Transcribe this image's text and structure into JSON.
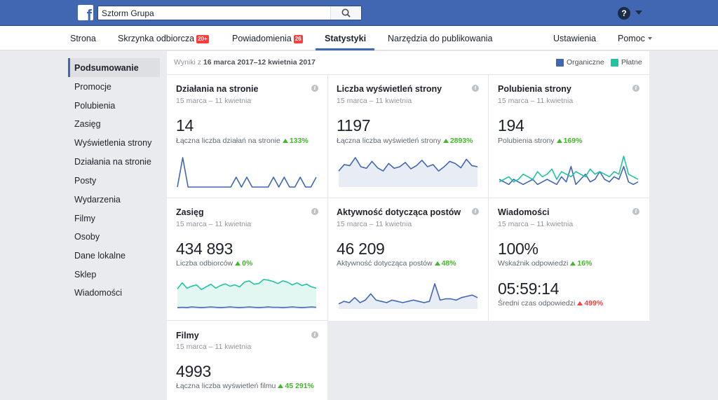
{
  "topbar": {
    "logo_letter": "f",
    "search_value": "Sztorm Grupa",
    "help_label": "?"
  },
  "nav": {
    "items": [
      {
        "label": "Strona"
      },
      {
        "label": "Skrzynka odbiorcza",
        "badge": "20+"
      },
      {
        "label": "Powiadomienia",
        "badge": "26"
      },
      {
        "label": "Statystyki",
        "active": true
      },
      {
        "label": "Narzędzia do publikowania"
      },
      {
        "label": "Ustawienia"
      },
      {
        "label": "Pomoc"
      }
    ]
  },
  "sidebar": {
    "items": [
      "Podsumowanie",
      "Promocje",
      "Polubienia",
      "Zasięg",
      "Wyświetlenia strony",
      "Działania na stronie",
      "Posty",
      "Wydarzenia",
      "Filmy",
      "Osoby",
      "Dane lokalne",
      "Sklep",
      "Wiadomości"
    ]
  },
  "summary": {
    "results_prefix": "Wyniki z ",
    "results_range": "16 marca 2017–12 kwietnia 2017",
    "legend": [
      {
        "label": "Organiczne",
        "color": "#4267b2"
      },
      {
        "label": "Płatne",
        "color": "#20c5a0"
      }
    ]
  },
  "cards": {
    "actions": {
      "title": "Działania na stronie",
      "date": "15 marca – 11 kwietnia",
      "value": "14",
      "sub": "Łączna liczba działań na stronie",
      "change": "133%",
      "chart_data": {
        "type": "line",
        "series": [
          {
            "color": "#4267b2",
            "values": [
              0,
              3,
              0,
              0,
              0,
              0,
              0,
              0,
              0,
              0,
              0,
              1,
              0,
              1,
              0,
              0,
              0,
              0,
              1,
              0,
              1,
              0,
              0,
              1,
              0,
              0,
              1
            ]
          }
        ]
      }
    },
    "views": {
      "title": "Liczba wyświetleń strony",
      "date": "15 marca – 11 kwietnia",
      "value": "1197",
      "sub": "Łączna liczba wyświetleń strony",
      "change": "2893%",
      "chart_data": {
        "type": "area",
        "series": [
          {
            "color": "#4267b2",
            "values": [
              30,
              42,
              40,
              55,
              38,
              35,
              48,
              36,
              30,
              44,
              35,
              38,
              46,
              34,
              40,
              50,
              38,
              42,
              30,
              38,
              48,
              44,
              36,
              52,
              40,
              38
            ]
          }
        ]
      }
    },
    "likes": {
      "title": "Polubienia strony",
      "date": "15 marca – 11 kwietnia",
      "value": "194",
      "sub": "Polubienia strony",
      "change": "169%",
      "chart_data": {
        "type": "line",
        "series": [
          {
            "color": "#4267b2",
            "values": [
              3,
              2,
              1,
              3,
              2,
              1,
              2,
              3,
              1,
              2,
              3,
              2,
              1,
              4,
              2,
              8,
              1,
              3,
              5,
              2,
              3,
              6,
              3,
              2,
              4,
              3,
              8,
              2,
              1,
              2
            ]
          },
          {
            "color": "#20c5a0",
            "values": [
              2,
              3,
              4,
              2,
              3,
              5,
              4,
              3,
              6,
              4,
              5,
              7,
              3,
              6,
              5,
              4,
              6,
              5,
              4,
              7,
              5,
              6,
              5,
              4,
              6,
              5,
              12,
              5,
              4,
              3
            ]
          }
        ]
      }
    },
    "reach": {
      "title": "Zasięg",
      "date": "15 marca – 11 kwietnia",
      "value": "434 893",
      "sub": "Liczba odbiorców",
      "change": "0%",
      "chart_data": {
        "type": "area",
        "series": [
          {
            "color": "#20c5a0",
            "values": [
              60,
              78,
              62,
              68,
              72,
              58,
              66,
              74,
              62,
              70,
              75,
              68,
              72,
              66,
              80,
              84,
              74,
              76,
              88,
              86,
              82,
              76,
              84,
              80,
              72,
              78,
              70,
              74,
              66,
              62
            ]
          },
          {
            "color": "#4267b2",
            "values": [
              4,
              5,
              4,
              6,
              5,
              4,
              5,
              6,
              5,
              4,
              5,
              6,
              5,
              4,
              5,
              6,
              5,
              4,
              5,
              6,
              5,
              5,
              4,
              5,
              6,
              5,
              4,
              5,
              6,
              5
            ]
          }
        ]
      }
    },
    "engagement": {
      "title": "Aktywność dotycząca postów",
      "date": "15 marca – 11 kwietnia",
      "value": "46 209",
      "sub": "Aktywność dotycząca postów",
      "change": "48%",
      "chart_data": {
        "type": "area",
        "series": [
          {
            "color": "#4267b2",
            "values": [
              8,
              12,
              10,
              18,
              10,
              14,
              24,
              14,
              12,
              10,
              14,
              12,
              10,
              12,
              14,
              12,
              10,
              12,
              40,
              14,
              16,
              16,
              14,
              18,
              20,
              22,
              18
            ]
          }
        ]
      }
    },
    "messages": {
      "title": "Wiadomości",
      "date": "15 marca – 11 kwietnia",
      "value": "100%",
      "sub": "Wskaźnik odpowiedzi",
      "change": "16%",
      "value2": "05:59:14",
      "sub2": "Średni czas odpowiedzi",
      "change2": "499%"
    },
    "videos": {
      "title": "Filmy",
      "date": "15 marca – 11 kwietnia",
      "value": "4993",
      "sub": "Łączna liczba wyświetleń filmu",
      "change": "45 291%"
    }
  }
}
